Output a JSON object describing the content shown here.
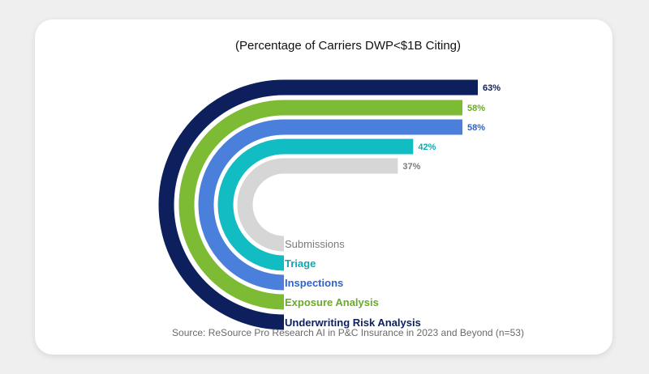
{
  "chart_data": {
    "type": "bar",
    "title": "(Percentage of Carriers DWP<$1B Citing)",
    "source": "Source: ReSource Pro Research AI in P&C Insurance in 2023 and Beyond (n=53)",
    "categories": [
      "Underwriting Risk Analysis",
      "Exposure Analysis",
      "Inspections",
      "Triage",
      "Submissions"
    ],
    "values": [
      63,
      58,
      58,
      42,
      37
    ],
    "value_labels": [
      "63%",
      "58%",
      "58%",
      "42%",
      "37%"
    ],
    "colors": [
      "#0d1f5c",
      "#7dbb34",
      "#4a7fdc",
      "#12bcc3",
      "#d6d6d6"
    ],
    "label_colors": [
      "#0d1f5c",
      "#6aa92a",
      "#2f63c8",
      "#12a7ae",
      "#7a7a7a"
    ]
  }
}
